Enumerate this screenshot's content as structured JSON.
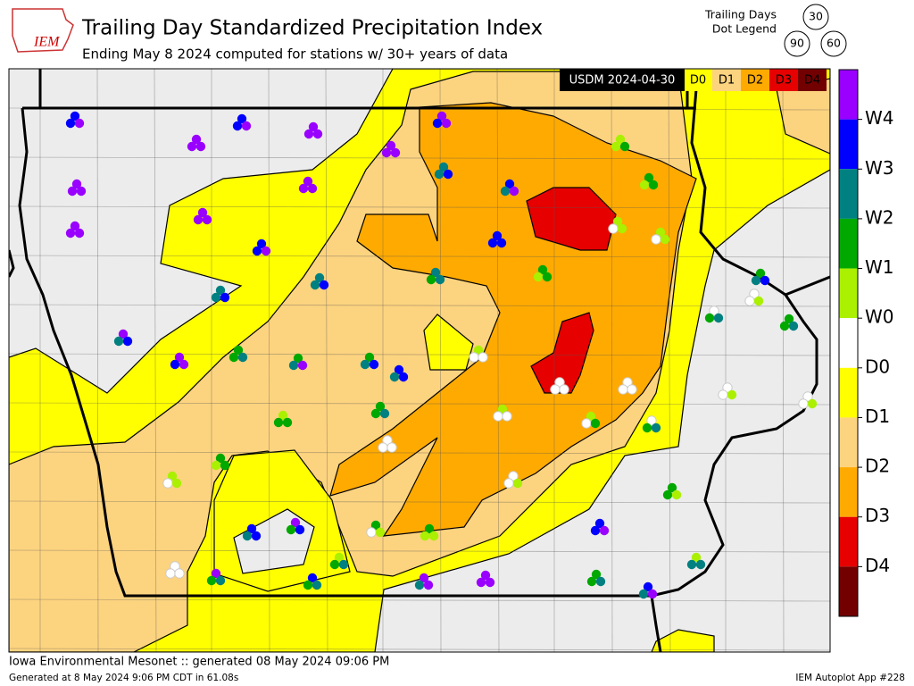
{
  "header": {
    "logo": "IEM",
    "title": "Trailing Day Standardized Precipitation Index",
    "subtitle": "Ending May 8 2024 computed for stations w/ 30+ years of data"
  },
  "dot_legend": {
    "title_lines": [
      "Trailing Days",
      "Dot Legend"
    ],
    "days": [
      "30",
      "90",
      "60"
    ]
  },
  "usdm_legend": {
    "label": "USDM 2024-04-30",
    "categories": [
      "D0",
      "D1",
      "D2",
      "D3",
      "D4"
    ]
  },
  "colorbar": {
    "labels": [
      "W4",
      "W3",
      "W2",
      "W1",
      "W0",
      "D0",
      "D1",
      "D2",
      "D3",
      "D4"
    ]
  },
  "footer": {
    "left": "Iowa Environmental Mesonet :: generated 08 May 2024 09:06 PM",
    "sub": "Generated at 8 May 2024 9:06 PM CDT in 61.08s",
    "right": "IEM Autoplot App #228"
  }
}
